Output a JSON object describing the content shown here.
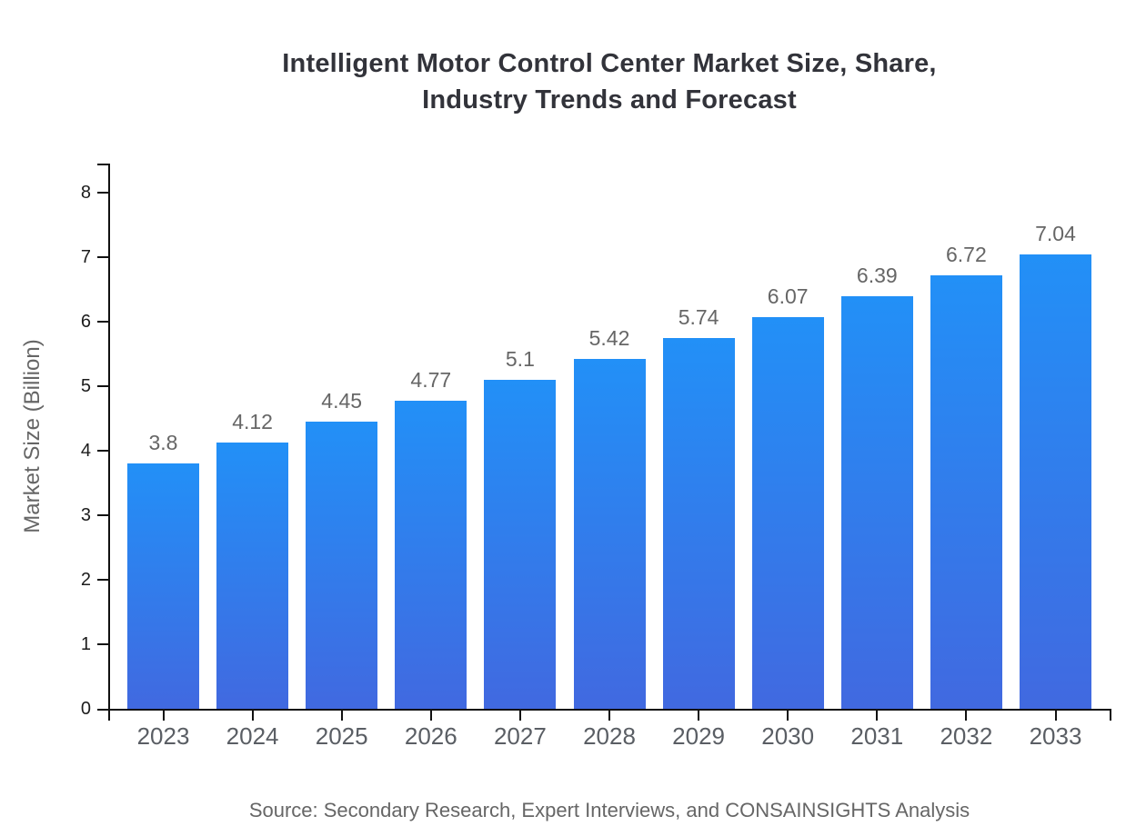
{
  "title": {
    "line1": "Intelligent Motor Control Center Market Size, Share,",
    "line2": "Industry Trends and Forecast"
  },
  "y_axis_label": "Market Size (Billion)",
  "source": "Source: Secondary Research, Expert Interviews, and CONSAINSIGHTS Analysis",
  "colors": {
    "background": "#ffffff",
    "bar_gradient_top": "#2290f7",
    "bar_gradient_bottom": "#4169e0",
    "axis": "#111111",
    "y_tick_label": "#1c1c1c",
    "x_tick_label": "#5a5e64",
    "value_label": "#666666",
    "title": "#32333a",
    "axis_title": "#666666",
    "source": "#666666"
  },
  "chart_data": {
    "type": "bar",
    "title": "Intelligent Motor Control Center Market Size, Share, Industry Trends and Forecast",
    "categories": [
      "2023",
      "2024",
      "2025",
      "2026",
      "2027",
      "2028",
      "2029",
      "2030",
      "2031",
      "2032",
      "2033"
    ],
    "values": [
      3.8,
      4.12,
      4.45,
      4.77,
      5.1,
      5.42,
      5.74,
      6.07,
      6.39,
      6.72,
      7.04
    ],
    "value_labels": [
      "3.8",
      "4.12",
      "4.45",
      "4.77",
      "5.1",
      "5.42",
      "5.74",
      "6.07",
      "6.39",
      "6.72",
      "7.04"
    ],
    "xlabel": "",
    "ylabel": "Market Size (Billion)",
    "ylim": [
      0,
      8
    ],
    "yticks": [
      0,
      1,
      2,
      3,
      4,
      5,
      6,
      7,
      8
    ],
    "grid": false,
    "legend": "none",
    "bar_fill": "vertical gradient #2290f7 to #4169e0"
  }
}
